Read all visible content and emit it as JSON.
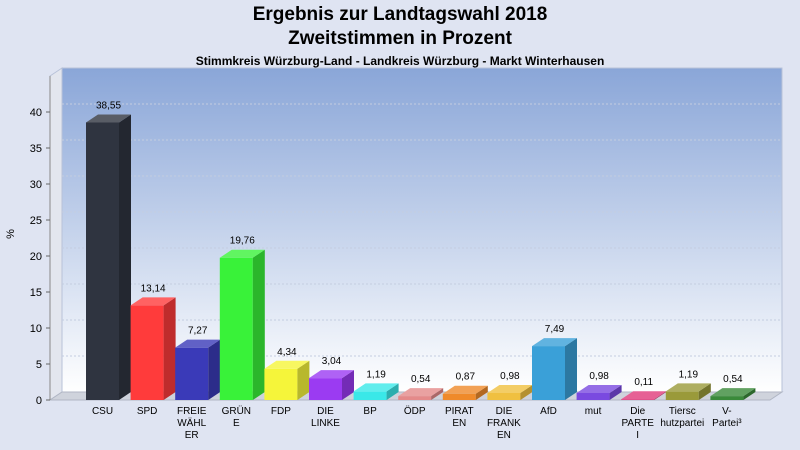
{
  "title": "Ergebnis zur Landtagswahl 2018",
  "subtitle": "Zweitstimmen in Prozent",
  "subsubtitle": "Stimmkreis Würzburg-Land - Landkreis Würzburg - Markt Winterhausen",
  "chart_data": {
    "type": "bar",
    "title": "Ergebnis zur Landtagswahl 2018",
    "ylabel": "%",
    "xlabel": "",
    "ylim": [
      0,
      45
    ],
    "yticks": [
      0,
      5,
      10,
      15,
      20,
      25,
      30,
      35,
      40
    ],
    "grid": true,
    "categories": [
      {
        "label": [
          "CSU"
        ],
        "value": 38.55,
        "value_label": "38,55",
        "color": "#2f3440"
      },
      {
        "label": [
          "SPD"
        ],
        "value": 13.14,
        "value_label": "13,14",
        "color": "#ff3b3b"
      },
      {
        "label": [
          "FREIE",
          "WÄHL",
          "ER"
        ],
        "value": 7.27,
        "value_label": "7,27",
        "color": "#3a3ab8"
      },
      {
        "label": [
          "GRÜN",
          "E"
        ],
        "value": 19.76,
        "value_label": "19,76",
        "color": "#39f239"
      },
      {
        "label": [
          "FDP"
        ],
        "value": 4.34,
        "value_label": "4,34",
        "color": "#f5f53a"
      },
      {
        "label": [
          "DIE",
          "LINKE"
        ],
        "value": 3.04,
        "value_label": "3,04",
        "color": "#9b3bf2"
      },
      {
        "label": [
          "BP"
        ],
        "value": 1.19,
        "value_label": "1,19",
        "color": "#3ae8e8"
      },
      {
        "label": [
          "ÖDP"
        ],
        "value": 0.54,
        "value_label": "0,54",
        "color": "#e48a8a"
      },
      {
        "label": [
          "PIRAT",
          "EN"
        ],
        "value": 0.87,
        "value_label": "0,87",
        "color": "#ef8a2a"
      },
      {
        "label": [
          "DIE",
          "FRANK",
          "EN"
        ],
        "value": 0.98,
        "value_label": "0,98",
        "color": "#f0c040"
      },
      {
        "label": [
          "AfD"
        ],
        "value": 7.49,
        "value_label": "7,49",
        "color": "#3aa0d8"
      },
      {
        "label": [
          "mut"
        ],
        "value": 0.98,
        "value_label": "0,98",
        "color": "#7a4ae0"
      },
      {
        "label": [
          "Die",
          "PARTE",
          "I"
        ],
        "value": 0.11,
        "value_label": "0,11",
        "color": "#e03a7a"
      },
      {
        "label": [
          "Tiersc",
          "hutzpartei"
        ],
        "value": 1.19,
        "value_label": "1,19",
        "color": "#9a9a3a"
      },
      {
        "label": [
          "V-",
          "Partei³"
        ],
        "value": 0.54,
        "value_label": "0,54",
        "color": "#3a8a3a"
      }
    ]
  }
}
